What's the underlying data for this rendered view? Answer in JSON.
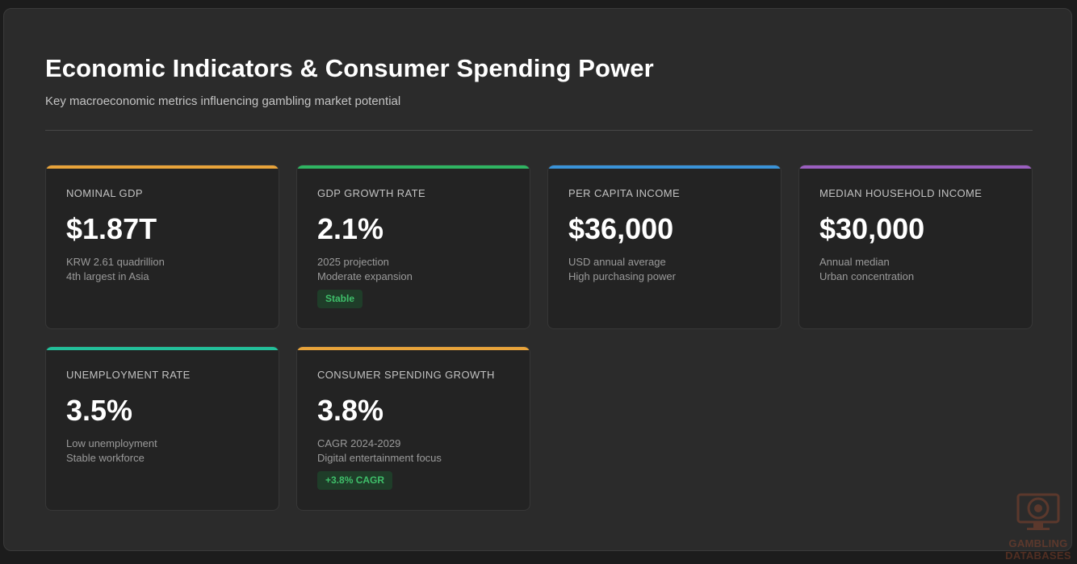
{
  "header": {
    "title": "Economic Indicators & Consumer Spending Power",
    "subtitle": "Key macroeconomic metrics influencing gambling market potential"
  },
  "cards": [
    {
      "label": "NOMINAL GDP",
      "value": "$1.87T",
      "line1": "KRW 2.61 quadrillion",
      "line2": "4th largest in Asia",
      "accent": "#e8a33a"
    },
    {
      "label": "GDP GROWTH RATE",
      "value": "2.1%",
      "line1": "2025 projection",
      "line2": "Moderate expansion",
      "badge": "Stable",
      "accent": "#2fb562"
    },
    {
      "label": "PER CAPITA INCOME",
      "value": "$36,000",
      "line1": "USD annual average",
      "line2": "High purchasing power",
      "accent": "#3a93d8"
    },
    {
      "label": "MEDIAN HOUSEHOLD INCOME",
      "value": "$30,000",
      "line1": "Annual median",
      "line2": "Urban concentration",
      "accent": "#9b5fc0"
    },
    {
      "label": "UNEMPLOYMENT RATE",
      "value": "3.5%",
      "line1": "Low unemployment",
      "line2": "Stable workforce",
      "accent": "#22bf9a"
    },
    {
      "label": "CONSUMER SPENDING GROWTH",
      "value": "3.8%",
      "line1": "CAGR 2024-2029",
      "line2": "Digital entertainment focus",
      "badge": "+3.8% CAGR",
      "accent": "#e8a33a"
    }
  ],
  "watermark": {
    "line1": "GAMBLING",
    "line2": "DATABASES",
    "icon": "casino-chip-monitor-icon",
    "color": "#b5502e"
  }
}
